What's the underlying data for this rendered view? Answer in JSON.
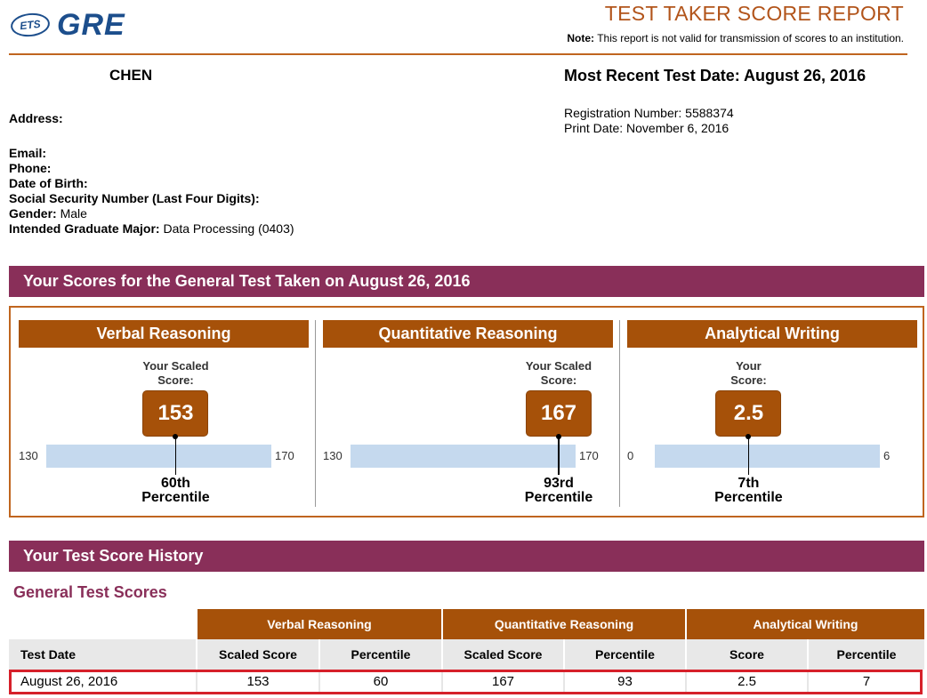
{
  "header": {
    "logo_mark": "ETS",
    "logo_word": "GRE",
    "report_title": "TEST TAKER SCORE REPORT",
    "note_label": "Note:",
    "note_text": "This report is not valid for transmission of scores to an institution."
  },
  "candidate": {
    "name": "CHEN",
    "recent_test_date": "Most Recent Test Date: August 26, 2016",
    "registration": "Registration Number: 5588374",
    "print_date": "Print Date: November 6, 2016",
    "address_label": "Address:",
    "email_label": "Email:",
    "phone_label": "Phone:",
    "dob_label": "Date of Birth:",
    "ssn_label": "Social Security Number (Last Four Digits):",
    "gender_label": "Gender:",
    "gender_value": "Male",
    "major_label": "Intended Graduate Major:",
    "major_value": "Data Processing (0403)"
  },
  "scores_section": {
    "title": "Your Scores for the General Test Taken on August 26, 2016",
    "panels": [
      {
        "name": "Verbal Reasoning",
        "score_label_1": "Your Scaled",
        "score_label_2": "Score:",
        "score": "153",
        "min": "130",
        "max": "170",
        "fraction": 0.575,
        "percentile_1": "60th",
        "percentile_2": "Percentile"
      },
      {
        "name": "Quantitative Reasoning",
        "score_label_1": "Your Scaled",
        "score_label_2": "Score:",
        "score": "167",
        "min": "130",
        "max": "170",
        "fraction": 0.925,
        "percentile_1": "93rd",
        "percentile_2": "Percentile"
      },
      {
        "name": "Analytical Writing",
        "score_label_1": "Your",
        "score_label_2": "Score:",
        "score": "2.5",
        "min": "0",
        "max": "6",
        "fraction": 0.4167,
        "percentile_1": "7th",
        "percentile_2": "Percentile"
      }
    ]
  },
  "history": {
    "title": "Your Test Score History",
    "subtitle": "General Test Scores",
    "groups": [
      "Verbal Reasoning",
      "Quantitative Reasoning",
      "Analytical Writing"
    ],
    "columns": [
      "Test Date",
      "Scaled Score",
      "Percentile",
      "Scaled Score",
      "Percentile",
      "Score",
      "Percentile"
    ],
    "rows": [
      [
        "August 26, 2016",
        "153",
        "60",
        "167",
        "93",
        "2.5",
        "7"
      ]
    ]
  },
  "colors": {
    "accent_orange": "#a65109",
    "section_purple": "#892f59",
    "bar_blue": "#c5d9ee",
    "highlight_red": "#d6202a"
  }
}
